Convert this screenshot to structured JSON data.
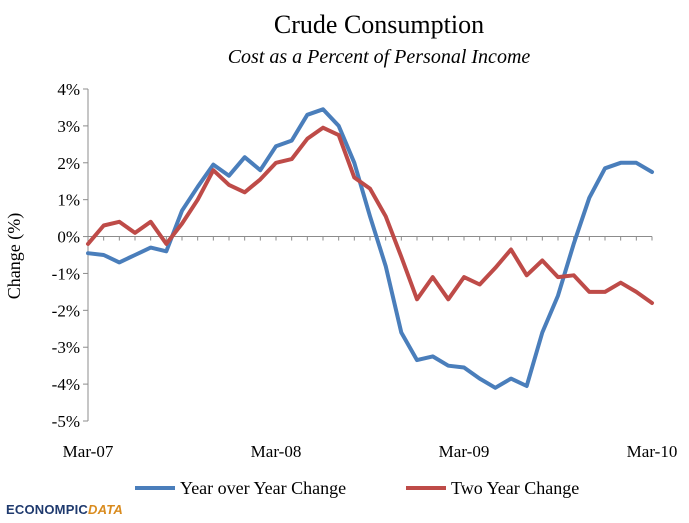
{
  "chart_data": {
    "type": "line",
    "title": "Crude Consumption",
    "subtitle": "Cost as a Percent of Personal Income",
    "xlabel": "",
    "ylabel": "Change (%)",
    "ylim": [
      -5,
      4
    ],
    "yticks": [
      4,
      3,
      2,
      1,
      0,
      -1,
      -2,
      -3,
      -4,
      -5
    ],
    "ytick_labels": [
      "4%",
      "3%",
      "2%",
      "1%",
      "0%",
      "-1%",
      "-2%",
      "-3%",
      "-4%",
      "-5%"
    ],
    "xtick_labels": [
      {
        "label": "Mar-07",
        "index": 0
      },
      {
        "label": "Mar-08",
        "index": 12
      },
      {
        "label": "Mar-09",
        "index": 24
      },
      {
        "label": "Mar-10",
        "index": 36
      }
    ],
    "num_points": 37,
    "series": [
      {
        "name": "Year over Year Change",
        "color": "#4a7ebb",
        "values": [
          -0.45,
          -0.5,
          -0.7,
          -0.5,
          -0.3,
          -0.4,
          0.7,
          1.35,
          1.95,
          1.65,
          2.15,
          1.8,
          2.45,
          2.6,
          3.3,
          3.45,
          3.0,
          2.0,
          0.55,
          -0.8,
          -2.6,
          -3.35,
          -3.25,
          -3.5,
          -3.55,
          -3.85,
          -4.1,
          -3.85,
          -4.05,
          -2.6,
          -1.6,
          -0.2,
          1.05,
          1.85,
          2.0,
          2.0,
          1.75
        ]
      },
      {
        "name": "Two Year Change",
        "color": "#be4b48",
        "values": [
          -0.2,
          0.3,
          0.4,
          0.1,
          0.4,
          -0.2,
          0.35,
          1.0,
          1.8,
          1.4,
          1.2,
          1.55,
          2.0,
          2.1,
          2.65,
          2.95,
          2.75,
          1.6,
          1.3,
          0.55,
          -0.55,
          -1.7,
          -1.1,
          -1.7,
          -1.1,
          -1.3,
          -0.85,
          -0.35,
          -1.05,
          -0.65,
          -1.1,
          -1.05,
          -1.5,
          -1.5,
          -1.25,
          -1.5,
          -1.8
        ]
      }
    ],
    "legend_position": "bottom"
  },
  "branding": {
    "logo_part1": "ECONOMPIC",
    "logo_part2": "DATA"
  }
}
